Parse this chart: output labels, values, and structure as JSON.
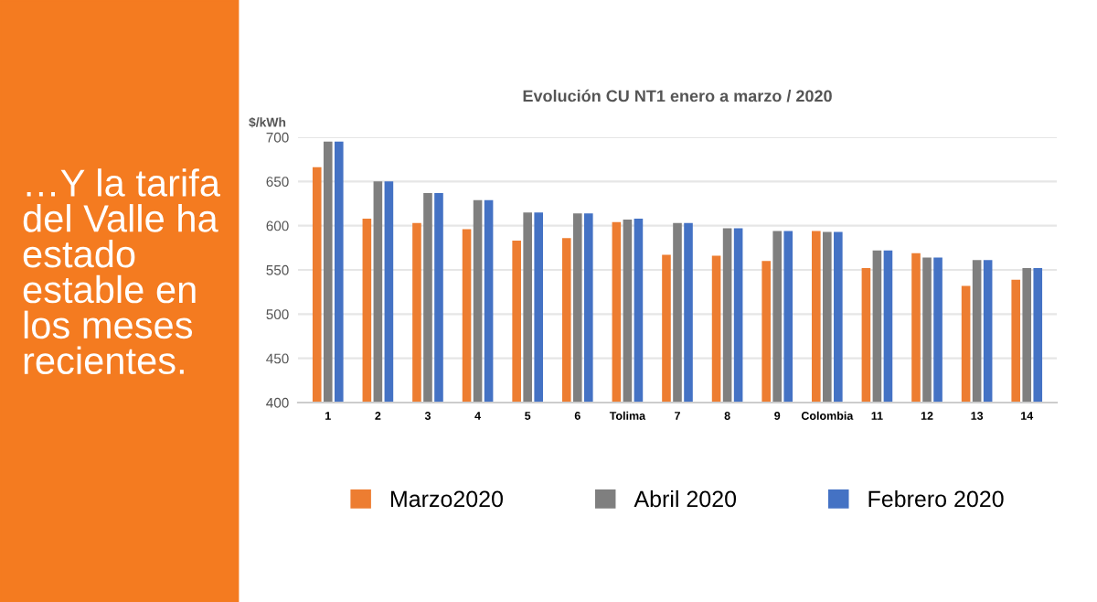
{
  "chart_data": {
    "type": "bar",
    "title": "Evolución CU NT1 enero a marzo / 2020",
    "ylabel": "$/kWh",
    "annotations": [
      "…Y la tarifa del Valle ha estado estable en los meses recientes."
    ],
    "categories": [
      "1",
      "2",
      "3",
      "4",
      "5",
      "6",
      "Tolima",
      "7",
      "8",
      "9",
      "Colombia",
      "11",
      "12",
      "13",
      "14"
    ],
    "series": [
      {
        "name": "Marzo2020",
        "color": "#ed7d31",
        "values": [
          666,
          608,
          603,
          596,
          583,
          586,
          604,
          567,
          566,
          560,
          594,
          552,
          569,
          532,
          539
        ]
      },
      {
        "name": "Abril 2020",
        "color": "#7f7f7f",
        "values": [
          695,
          650,
          637,
          629,
          615,
          614,
          607,
          603,
          597,
          594,
          593,
          572,
          564,
          561,
          552
        ]
      },
      {
        "name": "Febrero 2020",
        "color": "#4472c4",
        "values": [
          695,
          650,
          637,
          629,
          615,
          614,
          608,
          603,
          597,
          594,
          593,
          572,
          564,
          561,
          552
        ]
      }
    ],
    "ylim": [
      400,
      700
    ],
    "yticks": [
      400,
      450,
      500,
      550,
      600,
      650,
      700
    ],
    "grid": "y",
    "legend": "bottom"
  }
}
